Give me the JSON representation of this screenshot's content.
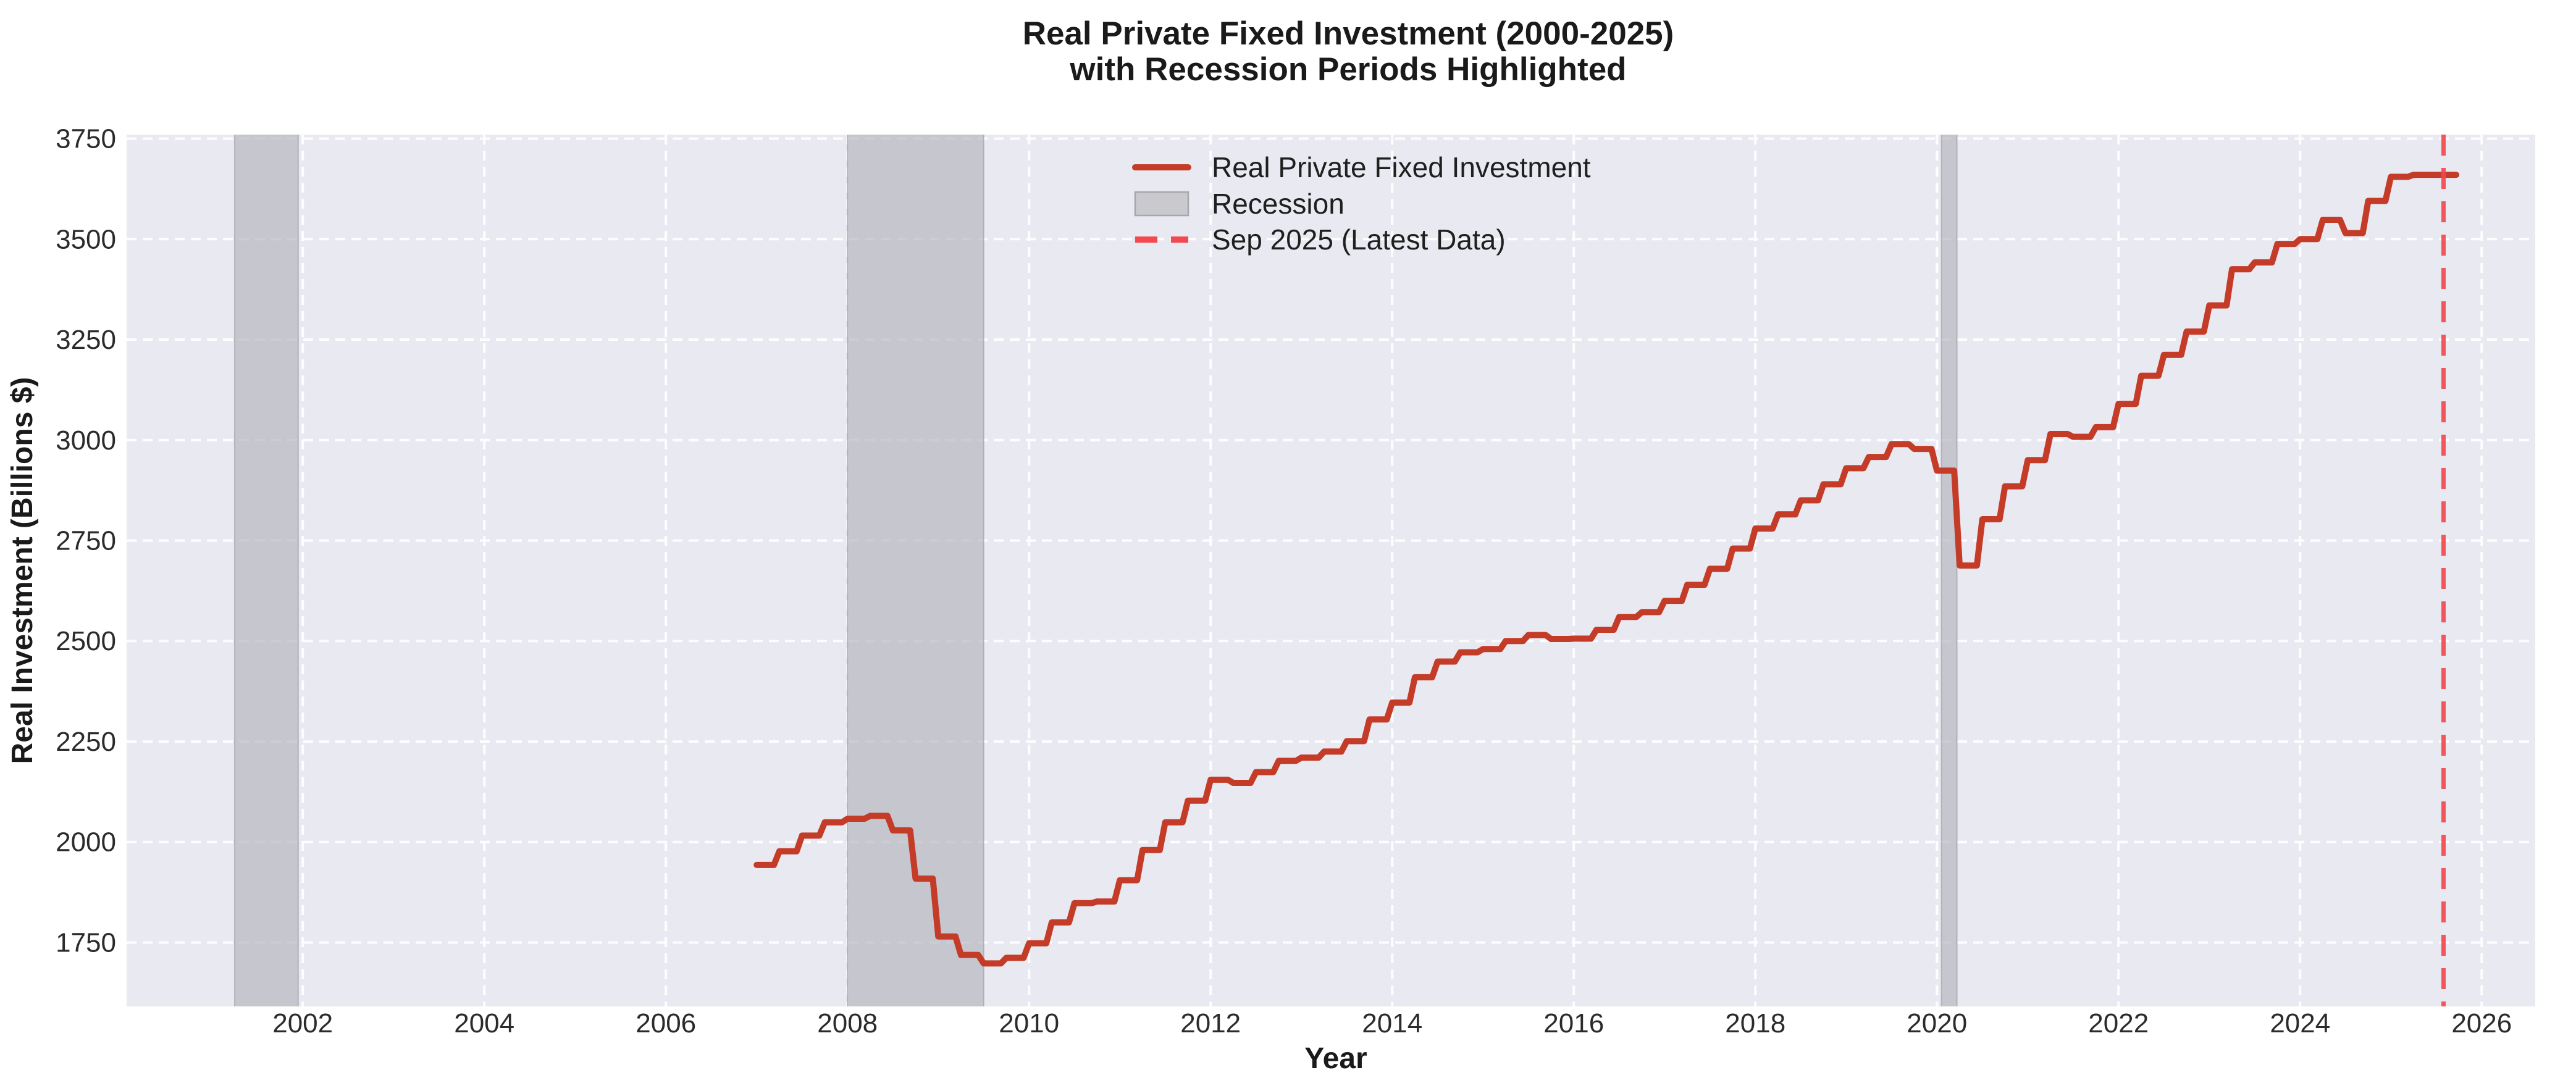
{
  "chart_data": {
    "type": "line",
    "title_lines": [
      "Real Private Fixed Investment (2000-2025)",
      "with Recession Periods Highlighted"
    ],
    "xlabel": "Year",
    "ylabel": "Real Investment (Billions $)",
    "x_ticks": [
      2002,
      2004,
      2006,
      2008,
      2010,
      2012,
      2014,
      2016,
      2018,
      2020,
      2022,
      2024,
      2026
    ],
    "y_ticks": [
      1750,
      2000,
      2250,
      2500,
      2750,
      3000,
      3250,
      3500,
      3750
    ],
    "xlim": [
      2000.06,
      2026.59
    ],
    "ylim": [
      1591,
      3760
    ],
    "grid": "dashed-white",
    "legend_position": "upper-center-left",
    "legend": [
      {
        "label": "Real Private Fixed Investment",
        "swatch": "solid-line",
        "color": "#c43b28"
      },
      {
        "label": "Recession",
        "swatch": "patch",
        "color": "#c9c9ce",
        "border": "#a6a6ac"
      },
      {
        "label": "Sep 2025 (Latest Data)",
        "swatch": "dashed-line",
        "color": "#f4474e"
      }
    ],
    "series": [
      {
        "name": "Real Private Fixed Investment",
        "color": "#c43b28",
        "start_year": 2007.0,
        "frequency": "quarterly",
        "style": "step",
        "values": [
          1943,
          1977,
          2016,
          2049,
          2058,
          2065,
          2029,
          1909,
          1765,
          1719,
          1698,
          1712,
          1748,
          1800,
          1848,
          1852,
          1905,
          1980,
          2049,
          2103,
          2155,
          2147,
          2174,
          2202,
          2210,
          2225,
          2251,
          2305,
          2347,
          2410,
          2449,
          2472,
          2480,
          2500,
          2515,
          2505,
          2506,
          2528,
          2560,
          2572,
          2600,
          2640,
          2680,
          2730,
          2780,
          2815,
          2850,
          2890,
          2930,
          2958,
          2990,
          2978,
          2924,
          2688,
          2803,
          2885,
          2950,
          3015,
          3008,
          3032,
          3090,
          3160,
          3212,
          3270,
          3335,
          3425,
          3442,
          3488,
          3500,
          3548,
          3515,
          3595,
          3655,
          3660,
          3660
        ]
      }
    ],
    "recession_bands": [
      {
        "start": 2001.25,
        "end": 2001.95
      },
      {
        "start": 2008.0,
        "end": 2009.5
      },
      {
        "start": 2020.05,
        "end": 2020.22
      }
    ],
    "vline": {
      "x": 2025.58,
      "label": "Sep 2025 (Latest Data)",
      "color": "#f4474e"
    },
    "colors": {
      "plot_bg": "#e9e9f1",
      "grid": "#ffffff",
      "line": "#c43b28",
      "vline": "#f4474e",
      "band_fill": "#b9b9c2",
      "band_edge": "#9a9aa2",
      "text": "#262626"
    }
  }
}
